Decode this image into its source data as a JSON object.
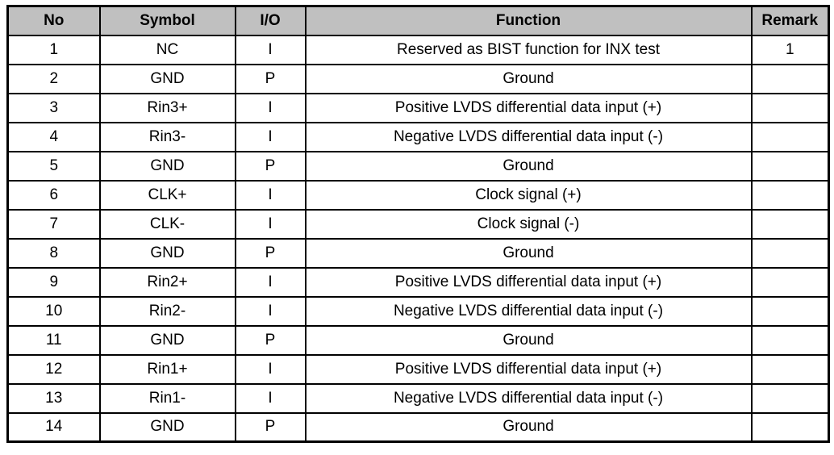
{
  "table": {
    "name": "pin-description-table",
    "header_bg": "#c0c0c0",
    "border_color": "#000000",
    "headers": [
      "No",
      "Symbol",
      "I/O",
      "Function",
      "Remark"
    ],
    "rows": [
      [
        "1",
        "NC",
        "I",
        "Reserved as BIST function for INX test",
        "1"
      ],
      [
        "2",
        "GND",
        "P",
        "Ground",
        ""
      ],
      [
        "3",
        "Rin3+",
        "I",
        "Positive LVDS differential data input (+)",
        ""
      ],
      [
        "4",
        "Rin3-",
        "I",
        "Negative LVDS differential data input (-)",
        ""
      ],
      [
        "5",
        "GND",
        "P",
        "Ground",
        ""
      ],
      [
        "6",
        "CLK+",
        "I",
        "Clock signal (+)",
        ""
      ],
      [
        "7",
        "CLK-",
        "I",
        "Clock signal (-)",
        ""
      ],
      [
        "8",
        "GND",
        "P",
        "Ground",
        ""
      ],
      [
        "9",
        "Rin2+",
        "I",
        "Positive LVDS differential data input (+)",
        ""
      ],
      [
        "10",
        "Rin2-",
        "I",
        "Negative LVDS differential data input (-)",
        ""
      ],
      [
        "11",
        "GND",
        "P",
        "Ground",
        ""
      ],
      [
        "12",
        "Rin1+",
        "I",
        "Positive LVDS differential data input (+)",
        ""
      ],
      [
        "13",
        "Rin1-",
        "I",
        "Negative LVDS differential data input (-)",
        ""
      ],
      [
        "14",
        "GND",
        "P",
        "Ground",
        ""
      ]
    ]
  }
}
